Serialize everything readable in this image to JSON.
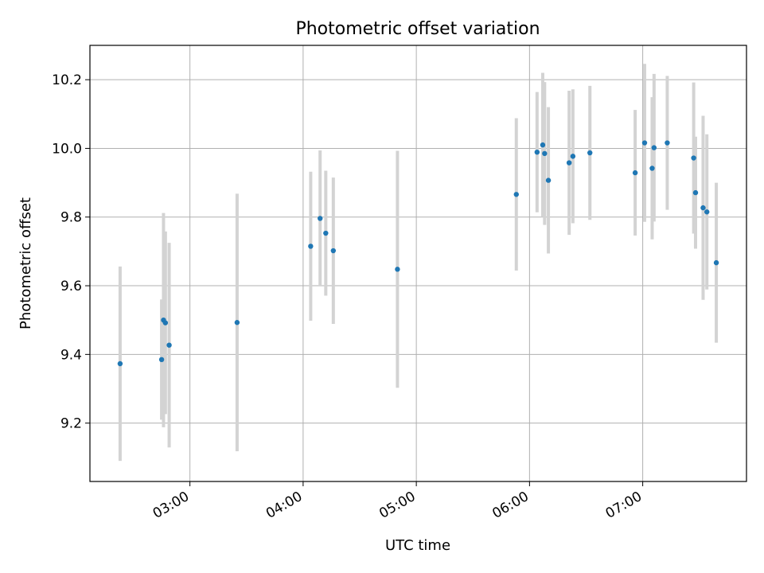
{
  "chart_data": {
    "type": "scatter",
    "title": "Photometric offset variation",
    "xlabel": "UTC time",
    "ylabel": "Photometric offset",
    "xlim": [
      "02:07",
      "07:55"
    ],
    "ylim": [
      9.03,
      10.3
    ],
    "x_ticks": [
      "03:00",
      "04:00",
      "05:00",
      "06:00",
      "07:00"
    ],
    "y_ticks": [
      9.2,
      9.4,
      9.6,
      9.8,
      10.0,
      10.2
    ],
    "grid": true,
    "marker_color": "#1f77b4",
    "errorbar_color": "#d3d3d3",
    "points": [
      {
        "x": "02:23",
        "y": 9.373,
        "yerr": 0.283
      },
      {
        "x": "02:45",
        "y": 9.385,
        "yerr": 0.175
      },
      {
        "x": "02:46",
        "y": 9.5,
        "yerr": 0.312
      },
      {
        "x": "02:47",
        "y": 9.492,
        "yerr": 0.266
      },
      {
        "x": "02:49",
        "y": 9.427,
        "yerr": 0.298
      },
      {
        "x": "03:25",
        "y": 9.493,
        "yerr": 0.375
      },
      {
        "x": "04:04",
        "y": 9.715,
        "yerr": 0.217
      },
      {
        "x": "04:09",
        "y": 9.796,
        "yerr": 0.198
      },
      {
        "x": "04:12",
        "y": 9.753,
        "yerr": 0.182
      },
      {
        "x": "04:16",
        "y": 9.702,
        "yerr": 0.213
      },
      {
        "x": "04:50",
        "y": 9.648,
        "yerr": 0.345
      },
      {
        "x": "05:53",
        "y": 9.866,
        "yerr": 0.222
      },
      {
        "x": "06:04",
        "y": 9.989,
        "yerr": 0.175
      },
      {
        "x": "06:07",
        "y": 10.01,
        "yerr": 0.21
      },
      {
        "x": "06:08",
        "y": 9.985,
        "yerr": 0.208
      },
      {
        "x": "06:10",
        "y": 9.907,
        "yerr": 0.213
      },
      {
        "x": "06:21",
        "y": 9.958,
        "yerr": 0.21
      },
      {
        "x": "06:23",
        "y": 9.977,
        "yerr": 0.195
      },
      {
        "x": "06:32",
        "y": 9.987,
        "yerr": 0.195
      },
      {
        "x": "06:56",
        "y": 9.929,
        "yerr": 0.183
      },
      {
        "x": "07:01",
        "y": 10.016,
        "yerr": 0.23
      },
      {
        "x": "07:05",
        "y": 9.942,
        "yerr": 0.207
      },
      {
        "x": "07:06",
        "y": 10.002,
        "yerr": 0.215
      },
      {
        "x": "07:13",
        "y": 10.016,
        "yerr": 0.195
      },
      {
        "x": "07:27",
        "y": 9.972,
        "yerr": 0.22
      },
      {
        "x": "07:28",
        "y": 9.871,
        "yerr": 0.163
      },
      {
        "x": "07:32",
        "y": 9.827,
        "yerr": 0.268
      },
      {
        "x": "07:34",
        "y": 9.815,
        "yerr": 0.226
      },
      {
        "x": "07:39",
        "y": 9.667,
        "yerr": 0.233
      }
    ]
  }
}
